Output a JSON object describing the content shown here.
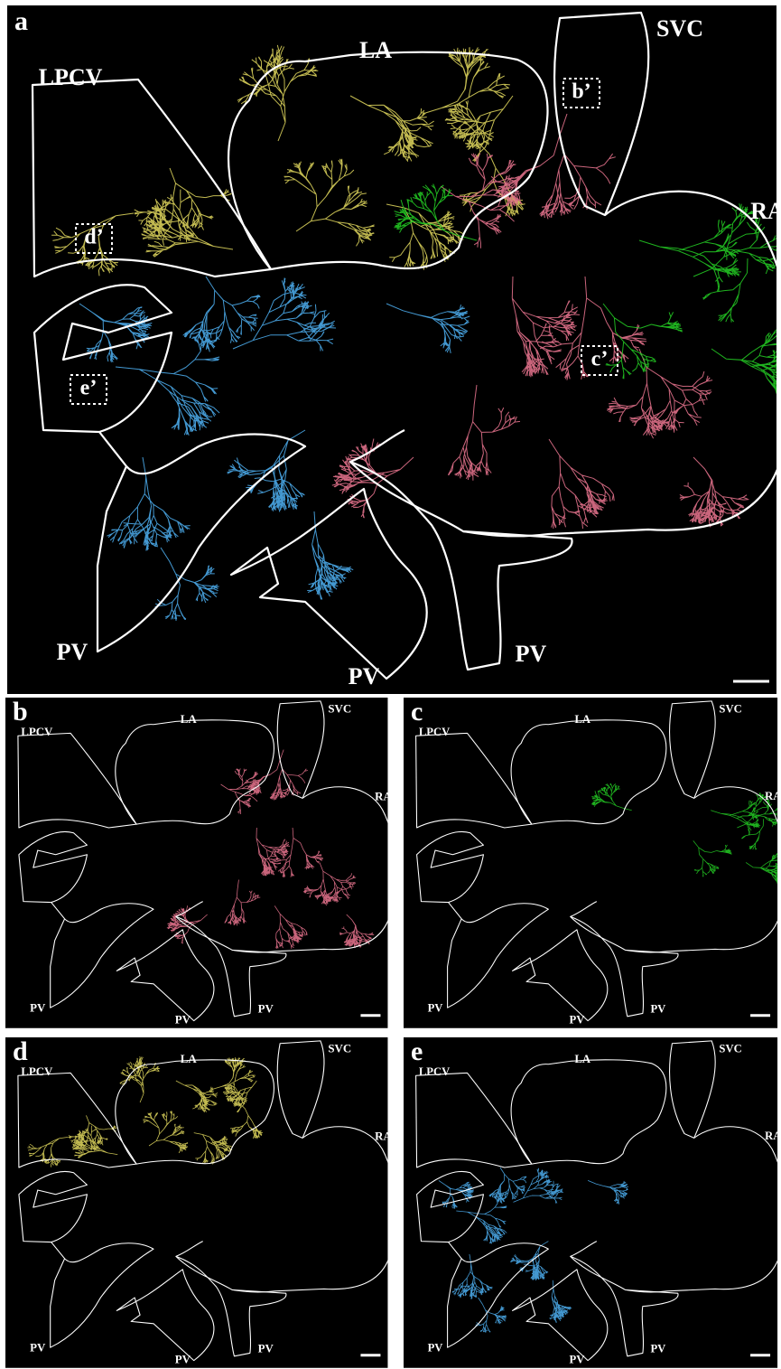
{
  "panels": [
    {
      "label": "a",
      "regions": [
        "LA",
        "SVC",
        "LPCV",
        "RA",
        "PV",
        "PV",
        "PV"
      ],
      "insets": [
        "b’",
        "c’",
        "d’",
        "e’"
      ]
    },
    {
      "label": "b",
      "regions": [
        "LA",
        "SVC",
        "LPCV",
        "RA",
        "PV",
        "PV",
        "PV"
      ]
    },
    {
      "label": "c",
      "regions": [
        "LA",
        "SVC",
        "LPCV",
        "RA",
        "PV",
        "PV",
        "PV"
      ]
    },
    {
      "label": "d",
      "regions": [
        "LA",
        "SVC",
        "LPCV",
        "RA",
        "PV",
        "PV",
        "PV"
      ]
    },
    {
      "label": "e",
      "regions": [
        "LA",
        "SVC",
        "LPCV",
        "RA",
        "PV",
        "PV",
        "PV"
      ]
    }
  ]
}
